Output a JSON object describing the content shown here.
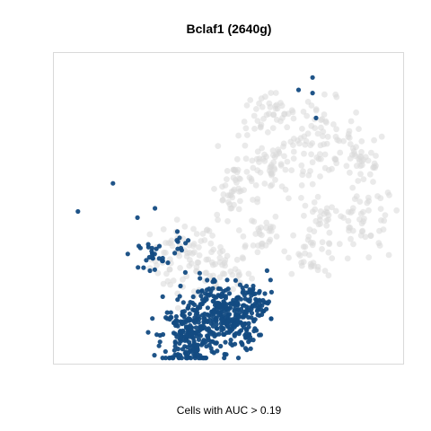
{
  "chart_data": {
    "type": "scatter",
    "title": "Bclaf1 (2640g)",
    "xlabel": "Cells with AUC > 0.19",
    "ylabel": "",
    "axes_visible": false,
    "grid": false,
    "legend": "none",
    "series": [
      {
        "role": "background",
        "color": "#d9d9d9",
        "clusters": [
          {
            "cx": 0.37,
            "cy": 0.34,
            "sx": 0.046,
            "sy": 0.061,
            "n": 70
          },
          {
            "cx": 0.48,
            "cy": 0.3,
            "sx": 0.041,
            "sy": 0.045,
            "n": 50
          },
          {
            "cx": 0.58,
            "cy": 0.42,
            "sx": 0.036,
            "sy": 0.036,
            "n": 30
          },
          {
            "cx": 0.63,
            "cy": 0.64,
            "sx": 0.046,
            "sy": 0.052,
            "n": 60
          },
          {
            "cx": 0.52,
            "cy": 0.59,
            "sx": 0.03,
            "sy": 0.039,
            "n": 30
          },
          {
            "cx": 0.76,
            "cy": 0.73,
            "sx": 0.051,
            "sy": 0.058,
            "n": 70
          },
          {
            "cx": 0.61,
            "cy": 0.8,
            "sx": 0.041,
            "sy": 0.036,
            "n": 40
          },
          {
            "cx": 0.88,
            "cy": 0.66,
            "sx": 0.036,
            "sy": 0.045,
            "n": 40
          },
          {
            "cx": 0.76,
            "cy": 0.47,
            "sx": 0.03,
            "sy": 0.026,
            "n": 20
          },
          {
            "cx": 0.89,
            "cy": 0.45,
            "sx": 0.046,
            "sy": 0.065,
            "n": 55
          },
          {
            "cx": 0.74,
            "cy": 0.37,
            "sx": 0.036,
            "sy": 0.039,
            "n": 35
          },
          {
            "cx": 0.5,
            "cy": 0.51,
            "sx": 0.023,
            "sy": 0.023,
            "n": 15
          }
        ]
      },
      {
        "role": "highlighted",
        "name": "Cells with AUC > 0.19",
        "color": "#134b82",
        "clusters": [
          {
            "cx": 0.39,
            "cy": 0.09,
            "sx": 0.041,
            "sy": 0.052,
            "n": 230
          },
          {
            "cx": 0.51,
            "cy": 0.14,
            "sx": 0.036,
            "sy": 0.049,
            "n": 190
          },
          {
            "cx": 0.45,
            "cy": 0.2,
            "sx": 0.046,
            "sy": 0.042,
            "n": 90
          },
          {
            "cx": 0.59,
            "cy": 0.19,
            "sx": 0.028,
            "sy": 0.029,
            "n": 50
          },
          {
            "cx": 0.28,
            "cy": 0.35,
            "sx": 0.018,
            "sy": 0.023,
            "n": 25
          },
          {
            "cx": 0.36,
            "cy": 0.39,
            "sx": 0.015,
            "sy": 0.016,
            "n": 10
          }
        ],
        "outliers": [
          {
            "x": 0.07,
            "y": 0.49
          },
          {
            "x": 0.17,
            "y": 0.58
          },
          {
            "x": 0.75,
            "y": 0.79
          },
          {
            "x": 0.7,
            "y": 0.88
          },
          {
            "x": 0.74,
            "y": 0.87
          },
          {
            "x": 0.74,
            "y": 0.92
          },
          {
            "x": 0.61,
            "y": 0.3
          },
          {
            "x": 0.29,
            "y": 0.5
          },
          {
            "x": 0.24,
            "y": 0.47
          },
          {
            "x": 0.62,
            "y": 0.27
          }
        ]
      }
    ]
  }
}
